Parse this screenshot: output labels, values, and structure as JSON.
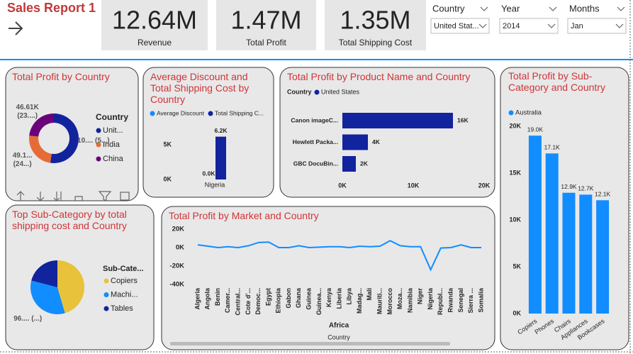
{
  "header": {
    "title": "Sales Report 1"
  },
  "kpis": [
    {
      "value": "12.64M",
      "label": "Revenue"
    },
    {
      "value": "1.47M",
      "label": "Total Profit"
    },
    {
      "value": "1.35M",
      "label": "Total Shipping Cost"
    }
  ],
  "slicers": [
    {
      "label": "Country",
      "value": "United Stat..."
    },
    {
      "label": "Year",
      "value": "2014"
    },
    {
      "label": "Months",
      "value": "Jan"
    }
  ],
  "chart_data": [
    {
      "type": "donut",
      "title": "Total Profit by Country",
      "legend_title": "Country",
      "categories": [
        "Unit...",
        "India",
        "China"
      ],
      "values": [
        105000,
        49100,
        46610
      ],
      "value_labels": [
        "10.... (5...)",
        "49.1... (24...)",
        "46.61K (23....)"
      ],
      "colors": [
        "#12239e",
        "#e66c37",
        "#6b007b"
      ]
    },
    {
      "type": "bar",
      "title": "Average Discount and Total Shipping Cost by Country",
      "categories": [
        "Nigeria"
      ],
      "series": [
        {
          "name": "Average Discount",
          "color": "#118dff",
          "values": [
            0
          ],
          "value_labels": [
            "0.0K"
          ]
        },
        {
          "name": "Total Shipping C...",
          "color": "#12239e",
          "values": [
            6200
          ],
          "value_labels": [
            "6.2K"
          ]
        }
      ],
      "ylim": [
        0,
        7500
      ],
      "yticks": [
        {
          "value": 0,
          "label": "0K"
        },
        {
          "value": 5000,
          "label": "5K"
        }
      ]
    },
    {
      "type": "hbar",
      "title": "Total Profit by Product Name and Country",
      "legend_title": "Country",
      "categories": [
        "Canon imageC...",
        "Hewlett Packa...",
        "GBC DocuBin..."
      ],
      "series": [
        {
          "name": "United States",
          "color": "#12239e",
          "values": [
            15600,
            3600,
            1900
          ],
          "value_labels": [
            "16K",
            "4K",
            "2K"
          ]
        }
      ],
      "xlim": [
        0,
        20000
      ],
      "xticks": [
        {
          "value": 0,
          "label": "0K"
        },
        {
          "value": 10000,
          "label": "10K"
        },
        {
          "value": 20000,
          "label": "20K"
        }
      ]
    },
    {
      "type": "bar",
      "title": "Total Profit by Sub-Category and Country",
      "categories": [
        "Copiers",
        "Phones",
        "Chairs",
        "Appliances",
        "Bookcases"
      ],
      "series": [
        {
          "name": "Australia",
          "color": "#118dff",
          "values": [
            19000,
            17100,
            12900,
            12700,
            12100
          ],
          "value_labels": [
            "19.0K",
            "17.1K",
            "12.9K",
            "12.7K",
            "12.1K"
          ]
        }
      ],
      "ylim": [
        0,
        20000
      ],
      "yticks": [
        {
          "value": 0,
          "label": "0K"
        },
        {
          "value": 5000,
          "label": "5K"
        },
        {
          "value": 10000,
          "label": "10K"
        },
        {
          "value": 15000,
          "label": "15K"
        },
        {
          "value": 20000,
          "label": "20K"
        }
      ]
    },
    {
      "type": "pie",
      "title": "Top Sub-Category by total shipping cost and Country",
      "legend_title": "Sub-Cate...",
      "categories": [
        "Copiers",
        "Machi...",
        "Tables"
      ],
      "values": [
        130000,
        96000,
        60000
      ],
      "value_labels": [
        null,
        "96.... (...)",
        null
      ],
      "colors": [
        "#e8c23a",
        "#118dff",
        "#12239e"
      ]
    },
    {
      "type": "line",
      "title": "Total Profit by Market and Country",
      "x_label": "Country",
      "group_label": "Africa",
      "categories": [
        "Algeria",
        "Angola",
        "Benin",
        "Camer...",
        "Central...",
        "Cote d'...",
        "Democ...",
        "Egypt",
        "Ethiopia",
        "Gabon",
        "Ghana",
        "Guinea",
        "Guinea...",
        "Kenya",
        "Liberia",
        "Libya",
        "Madag...",
        "Mali",
        "Mauriti...",
        "Morocco",
        "Moza...",
        "Namibia",
        "Niger",
        "Nigeria",
        "Republ...",
        "Rwanda",
        "Senegal",
        "Sierra ...",
        "Somalia"
      ],
      "values": [
        3000,
        1500,
        0,
        1000,
        0,
        2000,
        5500,
        6000,
        0,
        0,
        2000,
        0,
        500,
        1000,
        1000,
        0,
        1500,
        1000,
        1500,
        7500,
        2000,
        1000,
        1000,
        -24000,
        -500,
        0,
        3000,
        0,
        0
      ],
      "color": "#118dff",
      "ylim": [
        -42000,
        25000
      ],
      "yticks": [
        {
          "value": -40000,
          "label": "-40K"
        },
        {
          "value": -20000,
          "label": "-20K"
        },
        {
          "value": 0,
          "label": "0K"
        },
        {
          "value": 20000,
          "label": "20K"
        }
      ]
    }
  ]
}
